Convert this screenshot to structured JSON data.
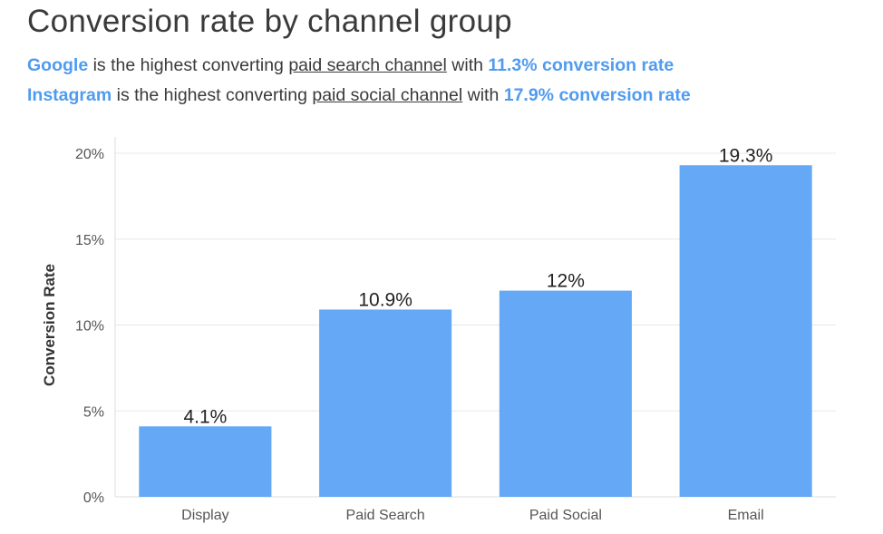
{
  "title": "Conversion rate by channel group",
  "subtitle_lines": [
    {
      "highlight": "Google",
      "text1": " is the highest converting ",
      "underline": "paid search channel",
      "text2": " with ",
      "stat": "11.3% conversion rate"
    },
    {
      "highlight": "Instagram",
      "text1": " is the highest converting ",
      "underline": "paid social channel",
      "text2": " with ",
      "stat": "17.9% conversion rate"
    }
  ],
  "colors": {
    "bar": "#64a8f6",
    "highlight": "#4f9bf0",
    "grid": "#e8e8e8",
    "axis": "#dddddd"
  },
  "chart_data": {
    "type": "bar",
    "categories": [
      "Display",
      "Paid Search",
      "Paid Social",
      "Email"
    ],
    "values": [
      4.1,
      10.9,
      12,
      19.3
    ],
    "data_labels": [
      "4.1%",
      "10.9%",
      "12%",
      "19.3%"
    ],
    "ylabel": "Conversion Rate",
    "xlabel": "",
    "ylim": [
      0,
      20
    ],
    "yticks": [
      0,
      5,
      10,
      15,
      20
    ],
    "ytick_labels": [
      "0%",
      "5%",
      "10%",
      "15%",
      "20%"
    ],
    "grid": true,
    "legend": "none"
  }
}
